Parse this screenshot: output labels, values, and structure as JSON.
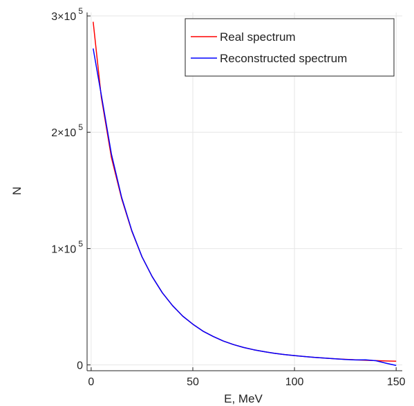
{
  "chart_data": {
    "type": "line",
    "xlabel": "E, MeV",
    "ylabel": "N",
    "xlim": [
      -2,
      153
    ],
    "ylim": [
      -5000,
      303000
    ],
    "grid": true,
    "legend_position": "top-right",
    "xticks": [
      {
        "value": 0,
        "label": "0"
      },
      {
        "value": 50,
        "label": "50"
      },
      {
        "value": 100,
        "label": "100"
      },
      {
        "value": 150,
        "label": "150"
      }
    ],
    "yticks": [
      {
        "value": 0,
        "base": "0",
        "exp": ""
      },
      {
        "value": 100000,
        "base": "1×10",
        "exp": "5"
      },
      {
        "value": 200000,
        "base": "2×10",
        "exp": "5"
      },
      {
        "value": 300000,
        "base": "3×10",
        "exp": "5"
      }
    ],
    "series": [
      {
        "name": "Real spectrum",
        "color": "#ff0000",
        "x": [
          1,
          5,
          10,
          15,
          20,
          25,
          30,
          35,
          40,
          45,
          50,
          55,
          60,
          65,
          70,
          75,
          80,
          85,
          90,
          95,
          100,
          105,
          110,
          115,
          120,
          125,
          130,
          135,
          140,
          145,
          150
        ],
        "y": [
          295000,
          230000,
          178000,
          143000,
          115000,
          93000,
          76000,
          62000,
          51000,
          42000,
          35000,
          29000,
          24500,
          20500,
          17500,
          15000,
          13000,
          11400,
          10000,
          8900,
          8000,
          7200,
          6500,
          5900,
          5300,
          4800,
          4400,
          4000,
          3700,
          3400,
          3200
        ]
      },
      {
        "name": "Reconstructed spectrum",
        "color": "#0000ff",
        "x": [
          1,
          5,
          10,
          15,
          20,
          25,
          30,
          35,
          40,
          45,
          50,
          55,
          60,
          65,
          70,
          75,
          80,
          85,
          90,
          95,
          100,
          105,
          110,
          115,
          120,
          125,
          130,
          135,
          140,
          145,
          150
        ],
        "y": [
          272000,
          232000,
          181000,
          144000,
          115500,
          93000,
          76000,
          62000,
          51000,
          42000,
          35000,
          29000,
          24500,
          20500,
          17500,
          15000,
          13000,
          11400,
          10000,
          8900,
          8000,
          7200,
          6500,
          5800,
          5200,
          4700,
          4300,
          4400,
          3600,
          1500,
          -500
        ]
      }
    ]
  }
}
